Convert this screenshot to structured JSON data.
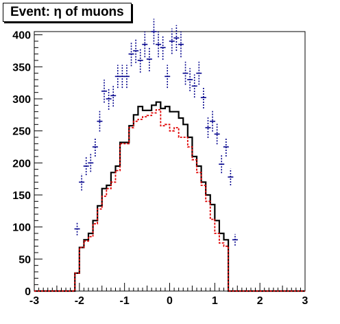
{
  "title": "Event: η of muons",
  "chart_data": {
    "type": "histogram",
    "title": "Event: η of muons",
    "xlabel": "",
    "ylabel": "",
    "xlim": [
      -3,
      3
    ],
    "ylim": [
      0,
      405
    ],
    "x_ticks": [
      -3,
      -2,
      -1,
      0,
      1,
      2,
      3
    ],
    "y_ticks": [
      0,
      50,
      100,
      150,
      200,
      250,
      300,
      350,
      400
    ],
    "grid": false,
    "legend": "none",
    "bin_edges": [
      -3.0,
      -2.9,
      -2.8,
      -2.7,
      -2.6,
      -2.5,
      -2.4,
      -2.3,
      -2.2,
      -2.1,
      -2.0,
      -1.9,
      -1.8,
      -1.7,
      -1.6,
      -1.5,
      -1.4,
      -1.3,
      -1.2,
      -1.1,
      -1.0,
      -0.9,
      -0.8,
      -0.7,
      -0.6,
      -0.5,
      -0.4,
      -0.3,
      -0.2,
      -0.1,
      0.0,
      0.1,
      0.2,
      0.3,
      0.4,
      0.5,
      0.6,
      0.7,
      0.8,
      0.9,
      1.0,
      1.1,
      1.2,
      1.3,
      1.4,
      1.5,
      1.6,
      1.7,
      1.8,
      1.9,
      2.0,
      2.1,
      2.2,
      2.3,
      2.4,
      2.5,
      2.6,
      2.7,
      2.8,
      2.9,
      3.0
    ],
    "series": [
      {
        "style": "solid-step",
        "color": "#000000",
        "values": [
          0,
          0,
          0,
          0,
          0,
          0,
          0,
          0,
          0,
          28,
          68,
          80,
          90,
          110,
          133,
          160,
          165,
          185,
          195,
          232,
          232,
          258,
          275,
          288,
          282,
          282,
          290,
          295,
          285,
          288,
          280,
          280,
          270,
          260,
          240,
          210,
          195,
          170,
          150,
          135,
          110,
          90,
          80,
          0,
          0,
          0,
          0,
          0,
          0,
          0,
          0,
          0,
          0,
          0,
          0,
          0,
          0,
          0,
          0,
          0
        ]
      },
      {
        "style": "dashed-step",
        "color": "#e00000",
        "values": [
          0,
          0,
          0,
          0,
          0,
          0,
          0,
          0,
          0,
          28,
          68,
          78,
          85,
          105,
          128,
          148,
          160,
          170,
          188,
          230,
          230,
          255,
          265,
          268,
          272,
          274,
          278,
          283,
          258,
          260,
          250,
          255,
          240,
          240,
          225,
          205,
          185,
          165,
          140,
          112,
          90,
          75,
          70,
          0,
          0,
          0,
          0,
          0,
          0,
          0,
          0,
          0,
          0,
          0,
          0,
          0,
          0,
          0,
          0,
          0
        ]
      },
      {
        "style": "points-with-errors",
        "color": "#00008b",
        "x": [
          -2.05,
          -1.95,
          -1.85,
          -1.75,
          -1.65,
          -1.55,
          -1.45,
          -1.35,
          -1.25,
          -1.15,
          -1.05,
          -0.95,
          -0.85,
          -0.75,
          -0.65,
          -0.55,
          -0.45,
          -0.35,
          -0.25,
          -0.15,
          -0.05,
          0.05,
          0.15,
          0.25,
          0.35,
          0.45,
          0.55,
          0.65,
          0.75,
          0.85,
          0.95,
          1.05,
          1.15,
          1.25,
          1.35,
          1.45,
          1.55,
          1.65,
          1.75,
          1.85,
          1.95,
          2.05
        ],
        "y": [
          97,
          170,
          195,
          200,
          225,
          265,
          312,
          300,
          305,
          335,
          335,
          335,
          370,
          375,
          360,
          385,
          362,
          405,
          385,
          380,
          335,
          390,
          395,
          385,
          340,
          330,
          320,
          340,
          302,
          255,
          265,
          245,
          198,
          225,
          178,
          80,
          0,
          0,
          0,
          0,
          0,
          0
        ],
        "yerr": [
          10,
          13,
          14,
          14,
          15,
          16,
          18,
          17,
          17,
          18,
          18,
          18,
          19,
          19,
          19,
          20,
          19,
          20,
          20,
          19,
          18,
          20,
          20,
          20,
          18,
          18,
          18,
          18,
          17,
          16,
          16,
          16,
          14,
          15,
          13,
          9,
          0,
          0,
          0,
          0,
          0,
          0
        ]
      }
    ]
  }
}
